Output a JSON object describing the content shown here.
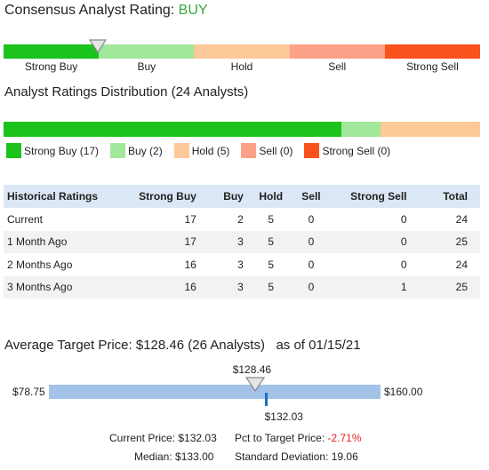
{
  "consensus": {
    "label": "Consensus Analyst Rating:",
    "rating": "BUY",
    "scale_labels": [
      "Strong Buy",
      "Buy",
      "Hold",
      "Sell",
      "Strong Sell"
    ],
    "scale_colors": [
      "#1cc31c",
      "#a1e89a",
      "#fdc999",
      "#fca187",
      "#fa521d"
    ],
    "marker_position_fraction": 0.2
  },
  "distribution": {
    "title": "Analyst Ratings Distribution (24 Analysts)",
    "segments": [
      {
        "name": "Strong Buy",
        "count": 17,
        "color": "#1cc31c",
        "legend": "Strong Buy (17)"
      },
      {
        "name": "Buy",
        "count": 2,
        "color": "#a1e89a",
        "legend": "Buy (2)"
      },
      {
        "name": "Hold",
        "count": 5,
        "color": "#fdc999",
        "legend": "Hold (5)"
      },
      {
        "name": "Sell",
        "count": 0,
        "color": "#fca187",
        "legend": "Sell (0)"
      },
      {
        "name": "Strong Sell",
        "count": 0,
        "color": "#fa521d",
        "legend": "Strong Sell (0)"
      }
    ]
  },
  "historical": {
    "headers": [
      "Historical Ratings",
      "Strong Buy",
      "Buy",
      "Hold",
      "Sell",
      "Strong Sell",
      "Total"
    ],
    "rows": [
      [
        "Current",
        "17",
        "2",
        "5",
        "0",
        "0",
        "24"
      ],
      [
        "1 Month Ago",
        "17",
        "3",
        "5",
        "0",
        "0",
        "25"
      ],
      [
        "2 Months Ago",
        "16",
        "3",
        "5",
        "0",
        "0",
        "24"
      ],
      [
        "3 Months Ago",
        "16",
        "3",
        "5",
        "0",
        "1",
        "25"
      ]
    ]
  },
  "target": {
    "title": "Average Target Price: $128.46 (26 Analysts)   as of 01/15/21",
    "average_label": "$128.46",
    "low_label": "$78.75",
    "high_label": "$160.00",
    "current_label": "$132.03",
    "low": 78.75,
    "high": 160.0,
    "average": 128.46,
    "current": 132.03,
    "current_price_label": "Current Price:",
    "current_price_value": "$132.03",
    "pct_label": "Pct to Target Price:",
    "pct_value": "-2.71%",
    "median_label": "Median:",
    "median_value": "$133.00",
    "std_label": "Standard Deviation:",
    "std_value": "19.06",
    "colors": {
      "bar": "#a3c2e8",
      "current_tick": "#1a72c7",
      "negative": "#e02020"
    }
  }
}
